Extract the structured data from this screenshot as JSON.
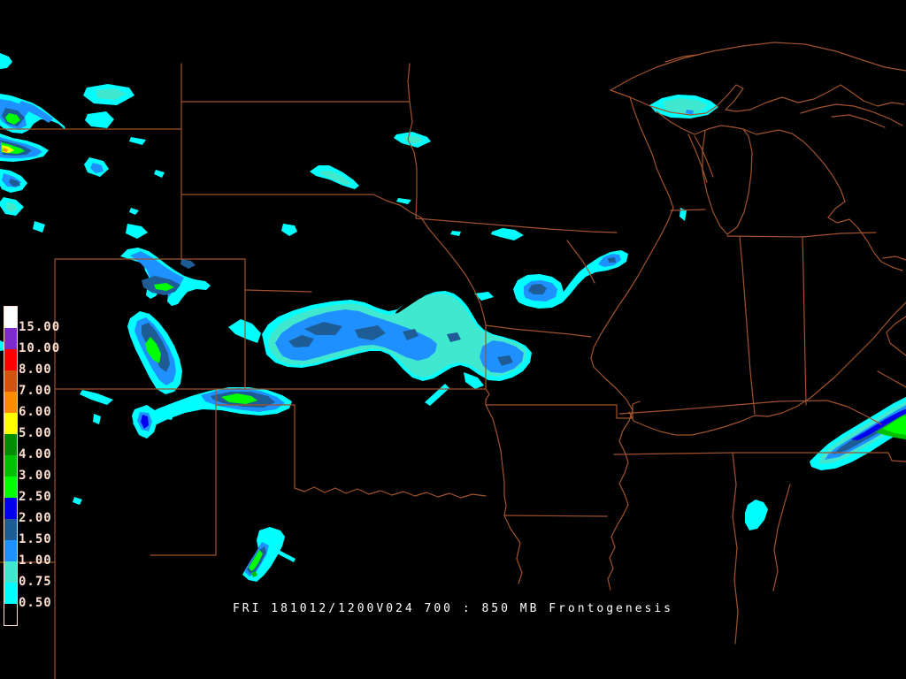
{
  "caption": {
    "text": "FRI 181012/1200V024 700 : 850 MB Frontogenesis"
  },
  "legend": {
    "description": "frontogenesis color scale, values increase upward",
    "segments": [
      {
        "color": "#FFFFFF",
        "label": "15.00"
      },
      {
        "color": "#7D2BCB",
        "label": "10.00"
      },
      {
        "color": "#FF0000",
        "label": "8.00"
      },
      {
        "color": "#D4540F",
        "label": "7.00"
      },
      {
        "color": "#FF8C00",
        "label": "6.00"
      },
      {
        "color": "#FFFF00",
        "label": "5.00"
      },
      {
        "color": "#008B00",
        "label": "4.00"
      },
      {
        "color": "#00C000",
        "label": "3.00"
      },
      {
        "color": "#00FF00",
        "label": "2.50"
      },
      {
        "color": "#0000EE",
        "label": "2.00"
      },
      {
        "color": "#1E5C96",
        "label": "1.50"
      },
      {
        "color": "#1E90FF",
        "label": "1.00"
      },
      {
        "color": "#40E8D0",
        "label": "0.75"
      },
      {
        "color": "#00FFFF",
        "label": "0.50"
      },
      {
        "color": "#000000",
        "label": null
      }
    ]
  },
  "palette": {
    "background": "#000000",
    "border": "#A0522D",
    "label_text": "#FFE0D0",
    "caption_text": "#FFFFFF",
    "c05": "#00FFFF",
    "c075": "#40E8D0",
    "c10": "#1E90FF",
    "c15": "#1E5C96",
    "c20": "#0000EE",
    "c25": "#00FF00",
    "c30": "#00C000",
    "c40": "#008B00",
    "c50": "#FFFF00",
    "c60": "#FF8C00",
    "c70": "#D4540F",
    "c80": "#FF0000",
    "c100": "#7D2BCB",
    "c150": "#FFFFFF"
  }
}
